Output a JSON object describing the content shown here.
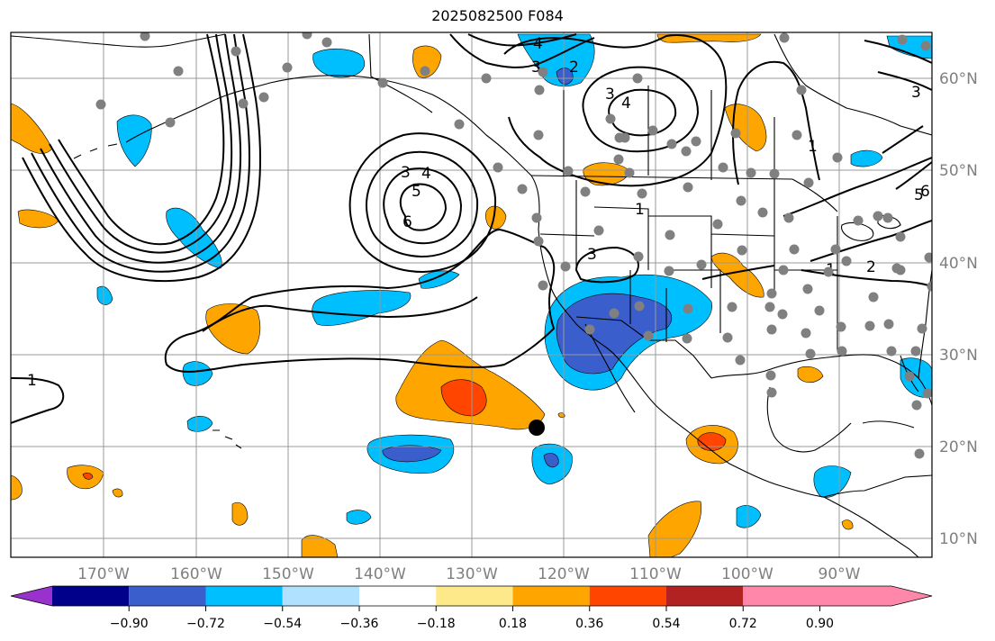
{
  "title": "2025082500 F084",
  "map": {
    "lon_labels": [
      "170°W",
      "160°W",
      "150°W",
      "140°W",
      "130°W",
      "120°W",
      "110°W",
      "100°W",
      "90°W"
    ],
    "lat_labels": [
      "60°N",
      "50°N",
      "40°N",
      "30°N",
      "20°N",
      "10°N"
    ],
    "contour_labels": [
      "1",
      "2",
      "3",
      "4",
      "5",
      "6"
    ],
    "colors": {
      "land_line": "#000000",
      "grid": "#999999",
      "station_dot": "#808080",
      "center_dot": "#000000"
    }
  },
  "colorbar": {
    "ticks": [
      "−0.90",
      "−0.72",
      "−0.54",
      "−0.36",
      "−0.18",
      "0.18",
      "0.36",
      "0.54",
      "0.72",
      "0.90"
    ],
    "colors": [
      "#9932cc",
      "#00008b",
      "#3a5fcd",
      "#00bfff",
      "#b0e2ff",
      "#ffffff",
      "#fee98a",
      "#ffa500",
      "#ff4500",
      "#b22222",
      "#ff88aa"
    ]
  }
}
